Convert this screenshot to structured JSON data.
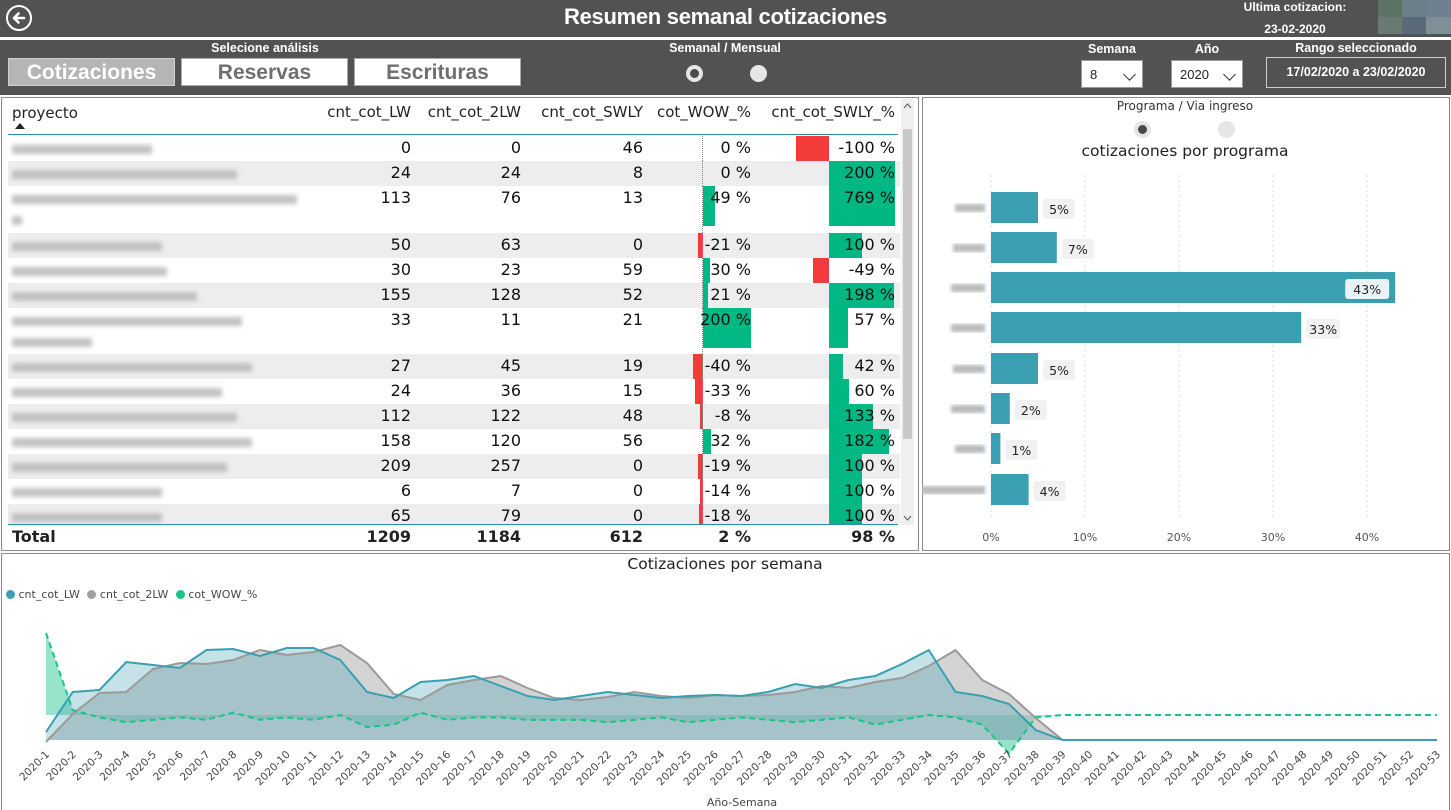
{
  "header": {
    "title": "Resumen semanal cotizaciones",
    "last_quote_label": "Ultima cotizacion:",
    "last_quote_date": "23-02-2020"
  },
  "toolbar": {
    "analysis_label": "Selecione análisis",
    "buttons": [
      "Cotizaciones",
      "Reservas",
      "Escrituras"
    ],
    "active_button": "Cotizaciones",
    "period_label": "Semanal / Mensual",
    "week_label": "Semana",
    "week_value": "8",
    "year_label": "Año",
    "year_value": "2020",
    "range_label": "Rango seleccionado",
    "range_value": "17/02/2020 a 23/02/2020"
  },
  "table": {
    "columns": [
      "proyecto",
      "cnt_cot_LW",
      "cnt_cot_2LW",
      "cnt_cot_SWLY",
      "cot_WOW_%",
      "cnt_cot_SWLY_%"
    ],
    "rows": [
      {
        "lw": "0",
        "lw2": "0",
        "swly": "46",
        "wow": "0 %",
        "wowv": 0,
        "swlyp": "-100 %",
        "swlypv": -100
      },
      {
        "lw": "24",
        "lw2": "24",
        "swly": "8",
        "wow": "0 %",
        "wowv": 0,
        "swlyp": "200 %",
        "swlypv": 200
      },
      {
        "lw": "113",
        "lw2": "76",
        "swly": "13",
        "wow": "49 %",
        "wowv": 49,
        "swlyp": "769 %",
        "swlypv": 769
      },
      {
        "lw": "50",
        "lw2": "63",
        "swly": "0",
        "wow": "-21 %",
        "wowv": -21,
        "swlyp": "100 %",
        "swlypv": 100
      },
      {
        "lw": "30",
        "lw2": "23",
        "swly": "59",
        "wow": "30 %",
        "wowv": 30,
        "swlyp": "-49 %",
        "swlypv": -49
      },
      {
        "lw": "155",
        "lw2": "128",
        "swly": "52",
        "wow": "21 %",
        "wowv": 21,
        "swlyp": "198 %",
        "swlypv": 198
      },
      {
        "lw": "33",
        "lw2": "11",
        "swly": "21",
        "wow": "200 %",
        "wowv": 200,
        "swlyp": "57 %",
        "swlypv": 57
      },
      {
        "lw": "27",
        "lw2": "45",
        "swly": "19",
        "wow": "-40 %",
        "wowv": -40,
        "swlyp": "42 %",
        "swlypv": 42
      },
      {
        "lw": "24",
        "lw2": "36",
        "swly": "15",
        "wow": "-33 %",
        "wowv": -33,
        "swlyp": "60 %",
        "swlypv": 60
      },
      {
        "lw": "112",
        "lw2": "122",
        "swly": "48",
        "wow": "-8 %",
        "wowv": -8,
        "swlyp": "133 %",
        "swlypv": 133
      },
      {
        "lw": "158",
        "lw2": "120",
        "swly": "56",
        "wow": "32 %",
        "wowv": 32,
        "swlyp": "182 %",
        "swlypv": 182
      },
      {
        "lw": "209",
        "lw2": "257",
        "swly": "0",
        "wow": "-19 %",
        "wowv": -19,
        "swlyp": "100 %",
        "swlypv": 100
      },
      {
        "lw": "6",
        "lw2": "7",
        "swly": "0",
        "wow": "-14 %",
        "wowv": -14,
        "swlyp": "100 %",
        "swlypv": 100
      },
      {
        "lw": "65",
        "lw2": "79",
        "swly": "0",
        "wow": "-18 %",
        "wowv": -18,
        "swlyp": "100 %",
        "swlypv": 100
      }
    ],
    "total": {
      "label": "Total",
      "lw": "1209",
      "lw2": "1184",
      "swly": "612",
      "wow": "2 %",
      "swlyp": "98 %"
    },
    "colors": {
      "positive": "#01b884",
      "negative": "#f43b3b"
    }
  },
  "program_chart": {
    "toggle_label": "Programa / Via ingreso",
    "title": "cotizaciones por programa",
    "x_ticks": [
      "0%",
      "10%",
      "20%",
      "30%",
      "40%"
    ],
    "bar_color": "#3a9fb1"
  },
  "chart_data": [
    {
      "type": "bar",
      "orientation": "horizontal",
      "title": "cotizaciones por programa",
      "categories": [
        "",
        "",
        "",
        "",
        "",
        "",
        "",
        ""
      ],
      "values": [
        5,
        7,
        43,
        33,
        5,
        2,
        1,
        4
      ],
      "labels": [
        "5%",
        "7%",
        "43%",
        "33%",
        "5%",
        "2%",
        "1%",
        "4%"
      ],
      "xlim": [
        0,
        43
      ],
      "x_ticks": [
        "0%",
        "10%",
        "20%",
        "30%",
        "40%"
      ]
    },
    {
      "type": "line",
      "title": "Cotizaciones por semana",
      "xlabel": "Año-Semana",
      "categories": [
        "2020-1",
        "2020-2",
        "2020-3",
        "2020-4",
        "2020-5",
        "2020-6",
        "2020-7",
        "2020-8",
        "2020-9",
        "2020-10",
        "2020-11",
        "2020-12",
        "2020-13",
        "2020-14",
        "2020-15",
        "2020-16",
        "2020-17",
        "2020-18",
        "2020-19",
        "2020-20",
        "2020-21",
        "2020-22",
        "2020-23",
        "2020-24",
        "2020-25",
        "2020-26",
        "2020-27",
        "2020-28",
        "2020-29",
        "2020-30",
        "2020-31",
        "2020-32",
        "2020-33",
        "2020-34",
        "2020-35",
        "2020-36",
        "2020-37",
        "2020-38",
        "2020-39",
        "2020-40",
        "2020-41",
        "2020-42",
        "2020-43",
        "2020-44",
        "2020-45",
        "2020-46",
        "2020-47",
        "2020-48",
        "2020-49",
        "2020-50",
        "2020-51",
        "2020-52",
        "2020-53"
      ],
      "series": [
        {
          "name": "cnt_cot_LW",
          "color": "#3a9fb1",
          "style": "area",
          "values": [
            1040,
            1240,
            1250,
            1390,
            1375,
            1360,
            1450,
            1455,
            1420,
            1460,
            1460,
            1400,
            1240,
            1210,
            1290,
            1300,
            1320,
            1270,
            1220,
            1200,
            1220,
            1240,
            1225,
            1210,
            1220,
            1225,
            1220,
            1240,
            1280,
            1260,
            1300,
            1320,
            1380,
            1450,
            1240,
            1220,
            1180,
            1050,
            1000,
            1000,
            1000,
            1000,
            1000,
            1000,
            1000,
            1000,
            1000,
            1000,
            1000,
            1000,
            1000,
            1000,
            1000
          ]
        },
        {
          "name": "cnt_cot_2LW",
          "color": "#a0a0a0",
          "style": "area",
          "values": [
            990,
            1130,
            1235,
            1240,
            1355,
            1385,
            1380,
            1400,
            1450,
            1425,
            1440,
            1475,
            1385,
            1230,
            1200,
            1275,
            1300,
            1320,
            1260,
            1210,
            1200,
            1215,
            1240,
            1220,
            1210,
            1225,
            1220,
            1225,
            1240,
            1270,
            1260,
            1290,
            1310,
            1370,
            1450,
            1300,
            1230,
            1110,
            1000,
            1000,
            1000,
            1000,
            1000,
            1000,
            1000,
            1000,
            1000,
            1000,
            1000,
            1000,
            1000,
            1000,
            1000
          ]
        },
        {
          "name": "cot_WOW_%",
          "color": "#1ac48a",
          "style": "dashed",
          "values": [
            170,
            10,
            -5,
            -15,
            -10,
            -5,
            -10,
            5,
            -10,
            -5,
            -10,
            0,
            -25,
            -20,
            5,
            -10,
            -5,
            -5,
            -10,
            -10,
            -10,
            -15,
            -10,
            -5,
            -15,
            -10,
            -5,
            -10,
            -15,
            -10,
            -5,
            -20,
            -10,
            0,
            -5,
            -20,
            -80,
            -5,
            0,
            0,
            0,
            0,
            0,
            0,
            0,
            0,
            0,
            0,
            0,
            0,
            0,
            0,
            0
          ]
        }
      ]
    }
  ],
  "week_chart": {
    "title": "Cotizaciones por semana",
    "xlabel": "Año-Semana",
    "legend": [
      "cnt_cot_LW",
      "cnt_cot_2LW",
      "cot_WOW_%"
    ]
  }
}
